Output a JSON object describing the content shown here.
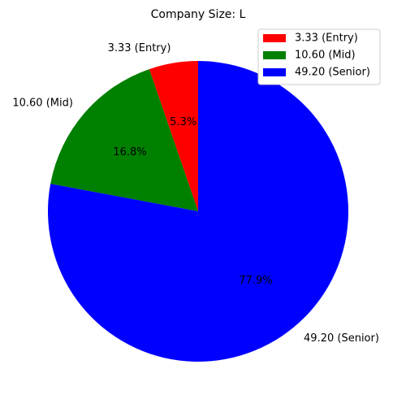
{
  "chart_data": {
    "type": "pie",
    "title": "Company Size: L",
    "categories": [
      "Entry",
      "Mid",
      "Senior"
    ],
    "values": [
      3.33,
      10.6,
      49.2
    ],
    "slice_labels": [
      "3.33 (Entry)",
      "10.60 (Mid)",
      "49.20 (Senior)"
    ],
    "percent_labels": [
      "5.3%",
      "16.8%",
      "77.9%"
    ],
    "colors": [
      "#ff0000",
      "#008000",
      "#0000ff"
    ],
    "legend_entries": [
      "3.33 (Entry)",
      "10.60 (Mid)",
      "49.20 (Senior)"
    ],
    "legend_position": "top-right",
    "start_angle_deg": 90,
    "direction": "counterclockwise"
  }
}
